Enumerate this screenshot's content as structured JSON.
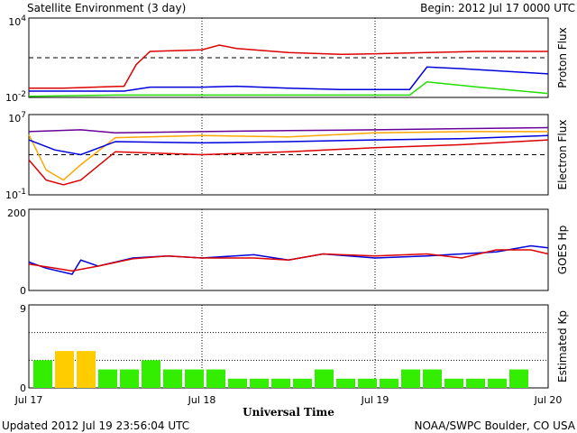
{
  "header": {
    "title": "Satellite Environment (3 day)",
    "begin": "Begin:  2012 Jul 17 0000 UTC"
  },
  "footer": {
    "updated": "Updated 2012 Jul 19 23:56:04 UTC",
    "credit": "NOAA/SWPC Boulder, CO USA",
    "xlabel": "Universal Time"
  },
  "x_ticks": [
    "Jul 17",
    "Jul 18",
    "Jul 19",
    "Jul 20"
  ],
  "colors": {
    "red": "#dd0000",
    "blue": "#0000dd",
    "green": "#22dd00",
    "orange": "#ffa500",
    "purple": "#660099",
    "kp_green": "#33ee00",
    "kp_yellow": "#ffcc00"
  },
  "chart_data": [
    {
      "type": "line",
      "title": "Proton Flux",
      "scale": "log",
      "ylim": [
        0.01,
        10000
      ],
      "ytick_labels": [
        "10^4",
        "10^-2"
      ],
      "threshold": 10,
      "xlim_days": [
        0,
        3
      ],
      "series": [
        {
          "name": "red",
          "color": "#dd0000",
          "x": [
            0,
            0.2,
            0.55,
            0.62,
            0.7,
            1.0,
            1.1,
            1.2,
            1.5,
            1.8,
            2.0,
            2.3,
            2.6,
            3.0
          ],
          "y": [
            0.05,
            0.05,
            0.07,
            3,
            30,
            40,
            90,
            50,
            25,
            18,
            20,
            25,
            30,
            30
          ]
        },
        {
          "name": "blue",
          "color": "#0000dd",
          "x": [
            0,
            0.55,
            0.7,
            1.0,
            1.2,
            1.5,
            1.8,
            2.0,
            2.2,
            2.3,
            2.5,
            3.0
          ],
          "y": [
            0.03,
            0.03,
            0.06,
            0.06,
            0.07,
            0.05,
            0.04,
            0.04,
            0.04,
            2,
            1.5,
            0.6
          ]
        },
        {
          "name": "green",
          "color": "#22dd00",
          "x": [
            0,
            0.5,
            1.0,
            1.5,
            2.0,
            2.2,
            2.3,
            2.6,
            3.0
          ],
          "y": [
            0.012,
            0.015,
            0.015,
            0.015,
            0.015,
            0.015,
            0.15,
            0.06,
            0.02
          ]
        }
      ]
    },
    {
      "type": "line",
      "title": "Electron Flux",
      "scale": "log",
      "ylim": [
        0.1,
        10000000
      ],
      "ytick_labels": [
        "10^7",
        "10^-1"
      ],
      "threshold": 1000,
      "xlim_days": [
        0,
        3
      ],
      "series": [
        {
          "name": "purple",
          "color": "#660099",
          "x": [
            0,
            0.3,
            0.5,
            1.0,
            1.5,
            2.0,
            2.5,
            3.0
          ],
          "y": [
            200000,
            300000,
            150000,
            200000,
            250000,
            300000,
            400000,
            500000
          ]
        },
        {
          "name": "orange",
          "color": "#ffa500",
          "x": [
            0,
            0.1,
            0.2,
            0.3,
            0.5,
            1.0,
            1.5,
            2.0,
            2.5,
            3.0
          ],
          "y": [
            100000,
            30,
            3,
            100,
            50000,
            80000,
            60000,
            150000,
            200000,
            200000
          ]
        },
        {
          "name": "blue",
          "color": "#0000dd",
          "x": [
            0,
            0.15,
            0.3,
            0.5,
            1.0,
            1.5,
            2.0,
            2.5,
            3.0
          ],
          "y": [
            30000,
            3000,
            1000,
            20000,
            15000,
            20000,
            30000,
            40000,
            80000
          ]
        },
        {
          "name": "red",
          "color": "#dd0000",
          "x": [
            0,
            0.1,
            0.2,
            0.3,
            0.5,
            1.0,
            1.5,
            2.0,
            2.5,
            3.0
          ],
          "y": [
            300,
            3,
            1,
            3,
            2000,
            1000,
            2000,
            5000,
            10000,
            30000
          ]
        }
      ]
    },
    {
      "type": "line",
      "title": "GOES Hp",
      "scale": "linear",
      "ylim": [
        0,
        200
      ],
      "ytick_labels": [
        "200",
        "0"
      ],
      "xlim_days": [
        0,
        3
      ],
      "series": [
        {
          "name": "blue",
          "color": "#0000dd",
          "x": [
            0,
            0.1,
            0.25,
            0.3,
            0.4,
            0.6,
            0.8,
            1.0,
            1.3,
            1.5,
            1.7,
            2.0,
            2.3,
            2.5,
            2.7,
            2.9,
            3.0
          ],
          "y": [
            70,
            55,
            40,
            75,
            60,
            80,
            85,
            80,
            88,
            75,
            90,
            80,
            85,
            90,
            95,
            110,
            105
          ]
        },
        {
          "name": "red",
          "color": "#dd0000",
          "x": [
            0,
            0.15,
            0.25,
            0.4,
            0.6,
            0.8,
            1.0,
            1.3,
            1.5,
            1.7,
            2.0,
            2.3,
            2.5,
            2.7,
            2.9,
            3.0
          ],
          "y": [
            65,
            55,
            48,
            60,
            78,
            85,
            80,
            80,
            75,
            90,
            85,
            90,
            80,
            100,
            100,
            90
          ]
        }
      ]
    },
    {
      "type": "bar",
      "title": "Estimated Kp",
      "ylim": [
        0,
        9
      ],
      "ytick_labels": [
        "9",
        "0"
      ],
      "values": [
        3,
        4,
        4,
        2,
        2,
        3,
        2,
        2,
        2,
        1,
        1,
        1,
        1,
        2,
        1,
        1,
        1,
        2,
        2,
        1,
        1,
        1,
        2
      ],
      "bar_colors": [
        "green",
        "yellow",
        "yellow",
        "green",
        "green",
        "green",
        "green",
        "green",
        "green",
        "green",
        "green",
        "green",
        "green",
        "green",
        "green",
        "green",
        "green",
        "green",
        "green",
        "green",
        "green",
        "green",
        "green"
      ]
    }
  ]
}
